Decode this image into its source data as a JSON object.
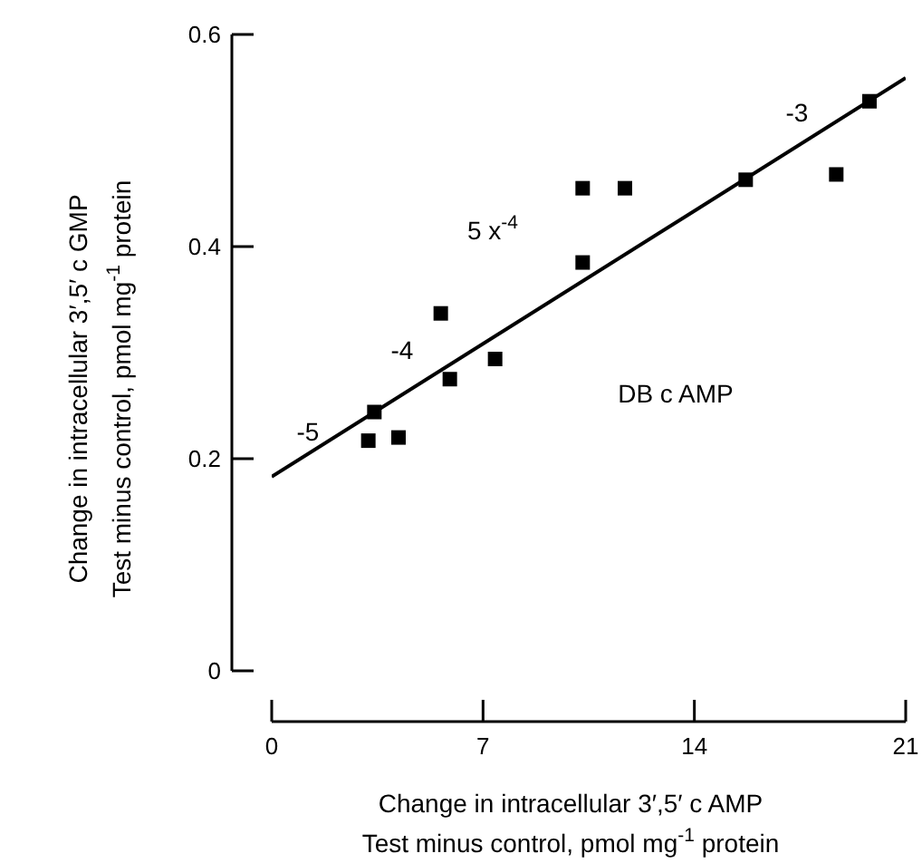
{
  "chart_data": {
    "type": "scatter",
    "xlabel": "Change in intracellular 3′,5′ c AMP\nTest minus control,     pmol mg$^{-1}$ protein",
    "ylabel": "Change in intracellular 3′,5′ c GMP\nTest minus control,     pmol mg$^{-1}$ protein",
    "xlim": [
      0,
      21
    ],
    "xticks": [
      0,
      7,
      14,
      21
    ],
    "ylim": [
      0,
      0.6
    ],
    "yticks": [
      0,
      0.2,
      0.4,
      0.6
    ],
    "grid": false,
    "series": [
      {
        "marker": "square",
        "color": "#000000",
        "x": [
          3.2,
          4.2,
          3.4,
          5.9,
          7.4,
          5.6,
          10.3,
          10.3,
          11.7,
          15.7,
          18.7,
          19.8
        ],
        "values": [
          0.217,
          0.22,
          0.244,
          0.275,
          0.294,
          0.337,
          0.385,
          0.455,
          0.455,
          0.463,
          0.468,
          0.537
        ]
      },
      {
        "type": "line",
        "color": "#000000",
        "x": [
          0,
          21
        ],
        "values": [
          0.183,
          0.559
        ]
      }
    ],
    "annotations": [
      "-5",
      "-4",
      "5 x$^{-4}$",
      "-3",
      "DB c AMP"
    ]
  }
}
